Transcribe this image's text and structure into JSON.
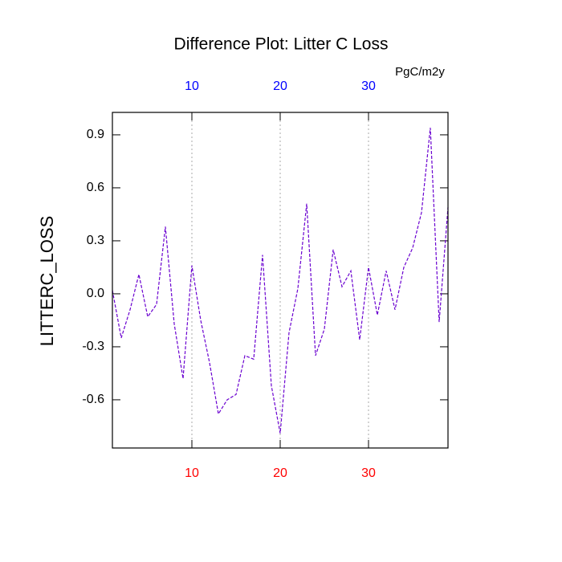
{
  "chart_data": {
    "type": "line",
    "title": "Difference Plot: Litter C Loss",
    "units": "PgC/m2y",
    "ylabel": "LITTERC_LOSS",
    "x": [
      1,
      2,
      3,
      4,
      5,
      6,
      7,
      8,
      9,
      10,
      11,
      12,
      13,
      14,
      15,
      16,
      17,
      18,
      19,
      20,
      21,
      22,
      23,
      24,
      25,
      26,
      27,
      28,
      29,
      30,
      31,
      32,
      33,
      34,
      35,
      36,
      37,
      38,
      39
    ],
    "series": [
      {
        "color": "#6a00d0",
        "values": [
          0.02,
          -0.25,
          -0.09,
          0.11,
          -0.13,
          -0.06,
          0.38,
          -0.17,
          -0.48,
          0.16,
          -0.15,
          -0.39,
          -0.68,
          -0.6,
          -0.57,
          -0.35,
          -0.37,
          0.22,
          -0.52,
          -0.79,
          -0.22,
          0.03,
          0.51,
          -0.35,
          -0.2,
          0.25,
          0.04,
          0.13,
          -0.26,
          0.15,
          -0.12,
          0.13,
          -0.09,
          0.15,
          0.26,
          0.46,
          0.94,
          -0.16,
          0.49
        ]
      }
    ],
    "xlim": [
      1,
      39
    ],
    "xticks": [
      10,
      20,
      30
    ],
    "ylim": [
      -0.873,
      1.027
    ],
    "yticks": [
      {
        "value": 0.9,
        "label": "0.9"
      },
      {
        "value": 0.6,
        "label": "0.6"
      },
      {
        "value": 0.3,
        "label": "0.3"
      },
      {
        "value": 0,
        "label": "0.0"
      },
      {
        "value": -0.3,
        "label": "-0.3"
      },
      {
        "value": -0.6,
        "label": "-0.6"
      }
    ],
    "bottom_tick_color": "#ff0000",
    "top_tick_color": "#0000ff",
    "grid": true
  }
}
